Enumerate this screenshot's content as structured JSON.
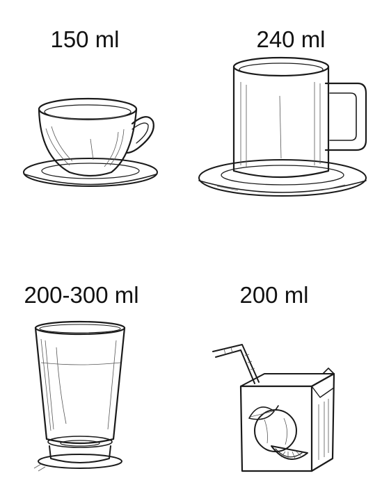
{
  "items": [
    {
      "id": "teacup",
      "label": "150 ml",
      "icon": "teacup-icon"
    },
    {
      "id": "mug",
      "label": "240 ml",
      "icon": "mug-icon"
    },
    {
      "id": "glass",
      "label": "200-300 ml",
      "icon": "glass-icon"
    },
    {
      "id": "juicebox",
      "label": "200 ml",
      "icon": "juice-box-icon"
    }
  ],
  "colors": {
    "ink": "#1a1a1a",
    "background": "#ffffff",
    "orange_fill": "#ffffff"
  }
}
